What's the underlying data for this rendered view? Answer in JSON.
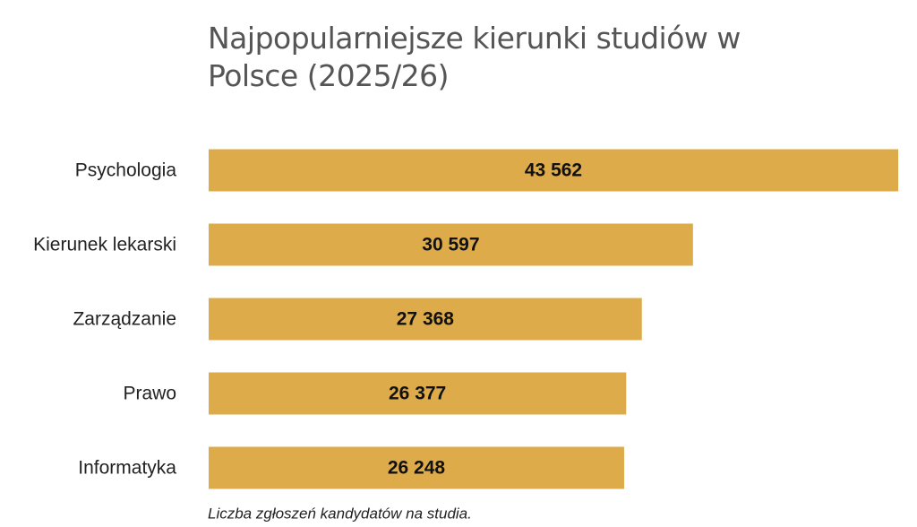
{
  "chart_data": {
    "type": "bar",
    "orientation": "horizontal",
    "title": "Najpopularniejsze kierunki studiów w Polsce (2025/26)",
    "categories": [
      "Psychologia",
      "Kierunek lekarski",
      "Zarządzanie",
      "Prawo",
      "Informatyka"
    ],
    "values": [
      43562,
      30597,
      27368,
      26377,
      26248
    ],
    "value_labels": [
      "43 562",
      "30 597",
      "27 368",
      "26 377",
      "26 248"
    ],
    "color": "#ddab4a",
    "note": "Liczba zgłoszeń kandydatów na studia."
  }
}
